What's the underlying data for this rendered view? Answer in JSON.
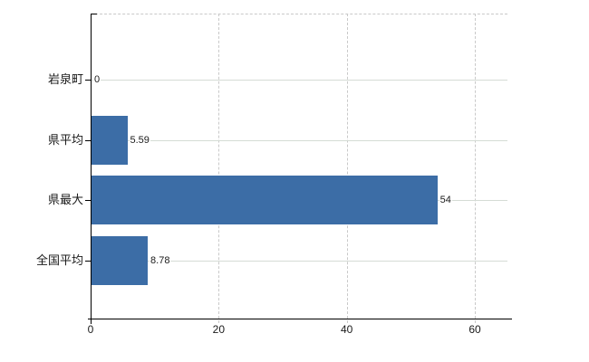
{
  "chart_data": {
    "type": "bar",
    "orientation": "horizontal",
    "title": "",
    "xlabel": "",
    "ylabel": "",
    "categories": [
      "岩泉町",
      "県平均",
      "県最大",
      "全国平均"
    ],
    "values": [
      0,
      5.59,
      54,
      8.78
    ],
    "value_labels": [
      "0",
      "5.59",
      "54",
      "8.78"
    ],
    "x_ticks": [
      0,
      20,
      40,
      60
    ],
    "x_tick_labels": [
      "0",
      "20",
      "40",
      "60"
    ],
    "xlim": [
      0,
      65
    ],
    "grid": true,
    "legend": "none",
    "bar_color": "#3c6da6",
    "grid_color_vertical": "#c9c9c9",
    "grid_color_horizontal": "#d5dcd5",
    "axis_color": "#000000",
    "background_color": "#ffffff"
  }
}
